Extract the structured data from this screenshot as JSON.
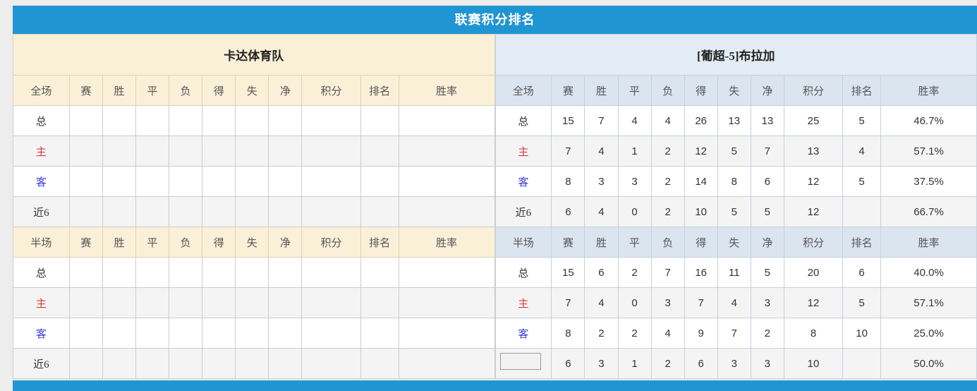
{
  "panel": {
    "title": "联赛积分排名"
  },
  "section_labels": {
    "full": "全场",
    "half": "半场"
  },
  "stat_columns": [
    "赛",
    "胜",
    "平",
    "负",
    "得",
    "失",
    "净",
    "积分",
    "排名",
    "胜率"
  ],
  "row_label_keys": [
    "total",
    "home",
    "away",
    "recent6"
  ],
  "teams": {
    "left": {
      "name": "卡达体育队",
      "full_rows": [
        {
          "label": "总",
          "cells": [
            "",
            "",
            "",
            "",
            "",
            "",
            "",
            "",
            "",
            ""
          ]
        },
        {
          "label": "主",
          "cells": [
            "",
            "",
            "",
            "",
            "",
            "",
            "",
            "",
            "",
            ""
          ]
        },
        {
          "label": "客",
          "cells": [
            "",
            "",
            "",
            "",
            "",
            "",
            "",
            "",
            "",
            ""
          ]
        },
        {
          "label": "近6",
          "cells": [
            "",
            "",
            "",
            "",
            "",
            "",
            "",
            "",
            "",
            ""
          ]
        }
      ],
      "half_rows": [
        {
          "label": "总",
          "cells": [
            "",
            "",
            "",
            "",
            "",
            "",
            "",
            "",
            "",
            ""
          ]
        },
        {
          "label": "主",
          "cells": [
            "",
            "",
            "",
            "",
            "",
            "",
            "",
            "",
            "",
            ""
          ]
        },
        {
          "label": "客",
          "cells": [
            "",
            "",
            "",
            "",
            "",
            "",
            "",
            "",
            "",
            ""
          ]
        },
        {
          "label": "近6",
          "cells": [
            "",
            "",
            "",
            "",
            "",
            "",
            "",
            "",
            "",
            ""
          ]
        }
      ]
    },
    "right": {
      "name": "[葡超-5]布拉加",
      "full_rows": [
        {
          "label": "总",
          "cells": [
            "15",
            "7",
            "4",
            "4",
            "26",
            "13",
            "13",
            "25",
            "5",
            "46.7%"
          ]
        },
        {
          "label": "主",
          "cells": [
            "7",
            "4",
            "1",
            "2",
            "12",
            "5",
            "7",
            "13",
            "4",
            "57.1%"
          ]
        },
        {
          "label": "客",
          "cells": [
            "8",
            "3",
            "3",
            "2",
            "14",
            "8",
            "6",
            "12",
            "5",
            "37.5%"
          ]
        },
        {
          "label": "近6",
          "cells": [
            "6",
            "4",
            "0",
            "2",
            "10",
            "5",
            "5",
            "12",
            "",
            "66.7%"
          ]
        }
      ],
      "half_rows": [
        {
          "label": "总",
          "cells": [
            "15",
            "6",
            "2",
            "7",
            "16",
            "11",
            "5",
            "20",
            "6",
            "40.0%"
          ]
        },
        {
          "label": "主",
          "cells": [
            "7",
            "4",
            "0",
            "3",
            "7",
            "4",
            "3",
            "12",
            "5",
            "57.1%"
          ]
        },
        {
          "label": "客",
          "cells": [
            "8",
            "2",
            "2",
            "4",
            "9",
            "7",
            "2",
            "8",
            "10",
            "25.0%"
          ]
        },
        {
          "label": "近6",
          "cells": [
            "6",
            "3",
            "1",
            "2",
            "6",
            "3",
            "3",
            "10",
            "",
            "50.0%"
          ]
        }
      ]
    }
  },
  "colors": {
    "accent_blue": "#2095d3",
    "left_header_bg": "#faf0d8",
    "right_team_header_bg": "#e3ecf4",
    "right_cols_header_bg": "#dbe5ef",
    "alt_row_bg": "#f4f4f4",
    "score_red": "#e8472a",
    "rank_blue": "#3d8dcc",
    "rate_red": "#e8472a",
    "home_label_red": "#d43c3c",
    "away_label_blue": "#3c3cd4"
  }
}
